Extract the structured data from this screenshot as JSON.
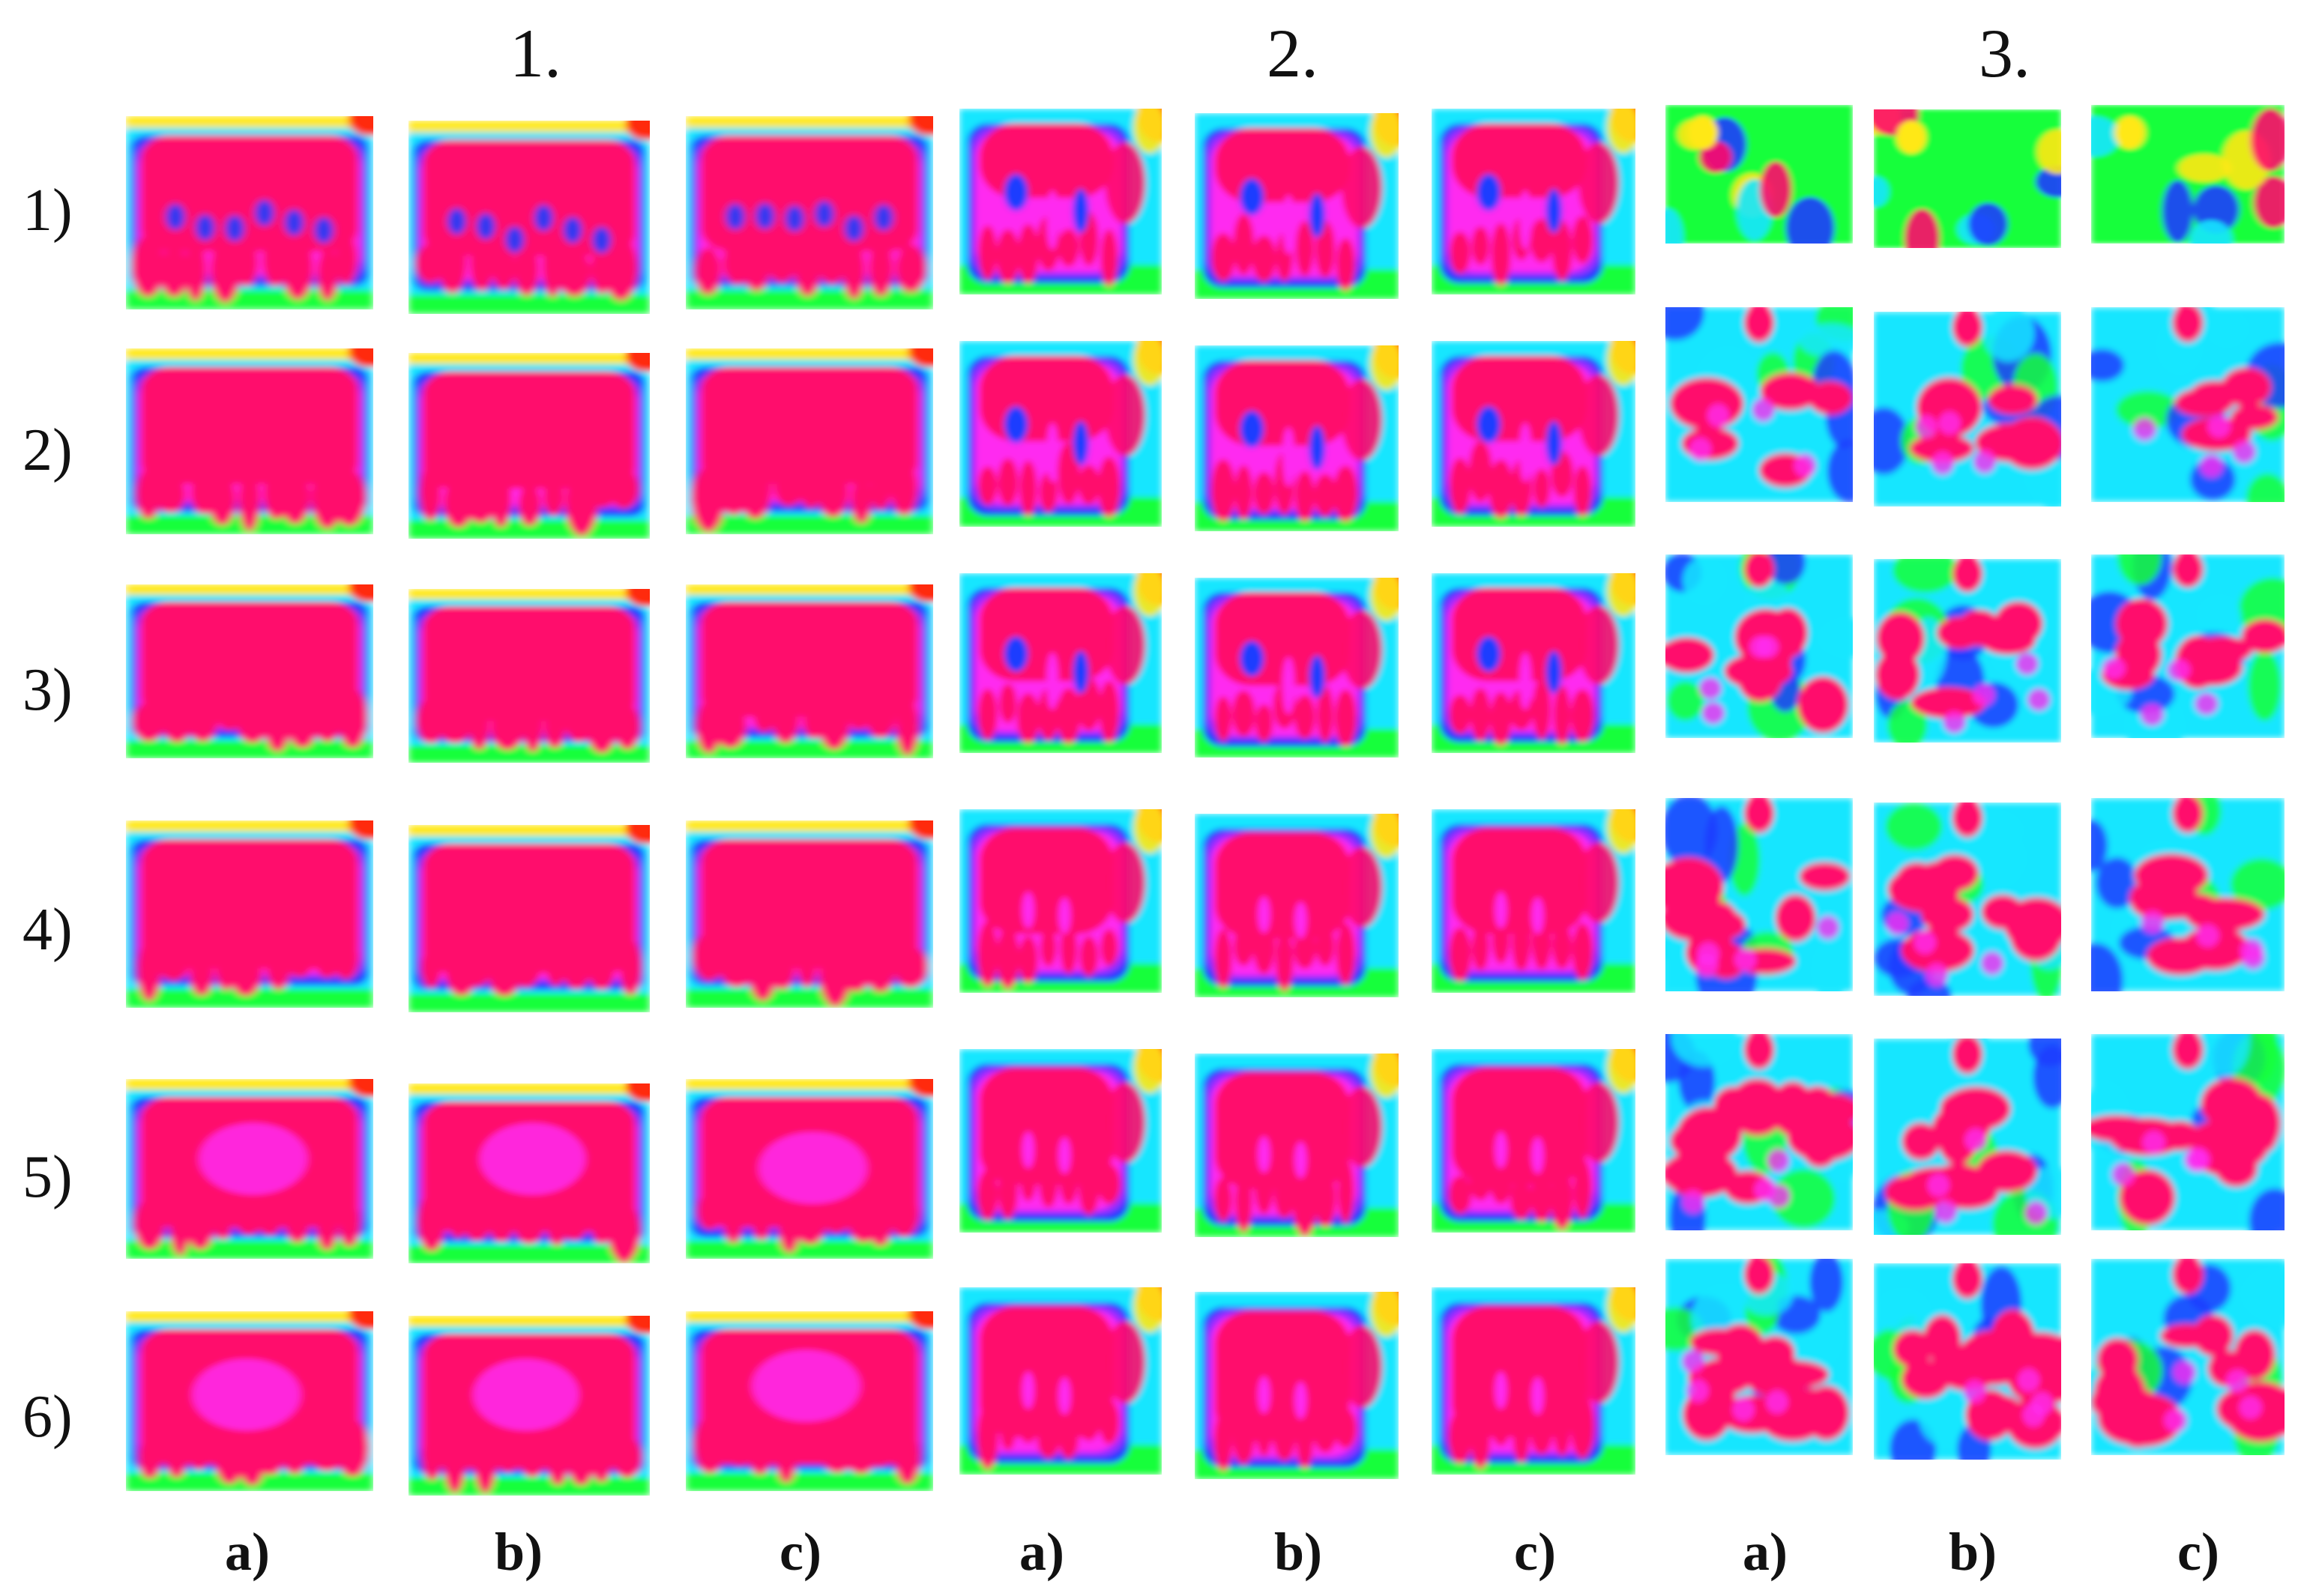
{
  "groups": [
    {
      "label": "1.",
      "style": "wide"
    },
    {
      "label": "2.",
      "style": "lobed"
    },
    {
      "label": "3.",
      "style": "patchy"
    }
  ],
  "rows": [
    "1)",
    "2)",
    "3)",
    "4)",
    "5)",
    "6)"
  ],
  "columns": [
    "a)",
    "b)",
    "c)"
  ],
  "palette": {
    "core": "#ff0a6c",
    "magenta": "#ff2cf0",
    "violet": "#9a2cff",
    "blue": "#1f3cff",
    "cyan": "#14e6ff",
    "green": "#16ff3a",
    "yellow": "#ffe814",
    "red": "#ff2a10"
  }
}
